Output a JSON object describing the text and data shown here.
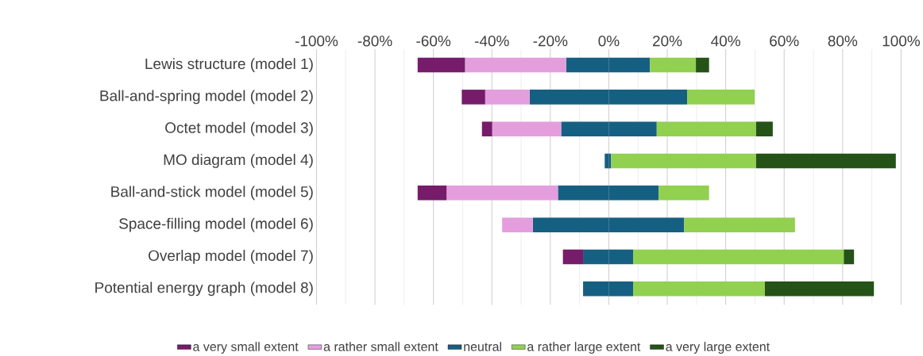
{
  "chart_data": {
    "type": "bar",
    "orientation": "horizontal",
    "stacked": true,
    "categories": [
      "Lewis structure (model 1)",
      "Ball-and-spring model (model 2)",
      "Octet model (model 3)",
      "MO diagram (model 4)",
      "Ball-and-stick model (model 5)",
      "Space-filling model (model 6)",
      "Overlap model (model 7)",
      "Potential energy graph (model 8)"
    ],
    "series": [
      {
        "color": "#156082",
        "values": [
          -14.6,
          -27.1,
          -16.3,
          -1.4,
          -17.4,
          -26.0,
          -8.8,
          -8.8
        ]
      },
      {
        "name": "a rather small extent",
        "color": "#e59edd",
        "values": [
          -34.6,
          -15.2,
          -23.6,
          0,
          -38.1,
          -10.5,
          0,
          0
        ]
      },
      {
        "name": "a very small extent",
        "color": "#761c6b",
        "values": [
          -16.2,
          -8.0,
          -3.5,
          0,
          -9.9,
          0,
          -6.9,
          0
        ]
      },
      {
        "name": "neutral",
        "color": "#156082",
        "values": [
          14.1,
          26.8,
          16.4,
          0.8,
          17.1,
          25.8,
          8.3,
          8.3
        ]
      },
      {
        "name": "a rather large extent",
        "color": "#92d050",
        "values": [
          15.7,
          23.1,
          34.0,
          49.6,
          17.2,
          37.9,
          72.1,
          45.1
        ]
      },
      {
        "name": "a very large extent",
        "color": "#245217",
        "values": [
          4.5,
          0,
          5.7,
          47.8,
          0,
          0,
          3.5,
          37.3
        ]
      }
    ],
    "xlim": [
      -100,
      100
    ],
    "xticks": [
      {
        "value": -100,
        "label": "-100%"
      },
      {
        "value": -80,
        "label": "-80%"
      },
      {
        "value": -60,
        "label": "-60%"
      },
      {
        "value": -40,
        "label": "-40%"
      },
      {
        "value": -20,
        "label": "-20%"
      },
      {
        "value": 0,
        "label": "0%"
      },
      {
        "value": 20,
        "label": "20%"
      },
      {
        "value": 40,
        "label": "40%"
      },
      {
        "value": 60,
        "label": "60%"
      },
      {
        "value": 80,
        "label": "80%"
      },
      {
        "value": 100,
        "label": "100%"
      }
    ],
    "grid": "x",
    "legend": "bottom"
  }
}
